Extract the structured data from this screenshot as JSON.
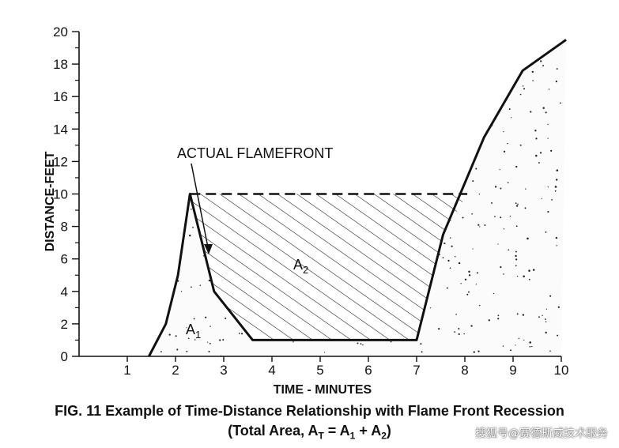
{
  "chart_data": {
    "type": "line",
    "xlabel": "TIME - MINUTES",
    "ylabel": "DISTANCE-FEET",
    "xlim": [
      0,
      10
    ],
    "ylim": [
      0,
      20
    ],
    "x_ticks": [
      1,
      2,
      3,
      4,
      5,
      6,
      7,
      8,
      9,
      10
    ],
    "y_ticks": [
      0,
      2,
      4,
      6,
      8,
      10,
      12,
      14,
      16,
      18,
      20
    ],
    "grid": false,
    "series": [
      {
        "name": "ACTUAL FLAMEFRONT",
        "style": "solid",
        "x": [
          1.45,
          1.8,
          2.05,
          2.3,
          2.8,
          3.6,
          7.0,
          7.55,
          8.4,
          9.2,
          10.1
        ],
        "y": [
          0,
          2,
          5,
          10,
          4,
          1,
          1,
          7.5,
          13.5,
          17.6,
          19.5
        ]
      },
      {
        "style": "dashed",
        "x": [
          2.3,
          8.05
        ],
        "y": [
          10,
          10
        ]
      }
    ],
    "regions": [
      {
        "label": "A",
        "label_sub": "1",
        "fill": "stippled"
      },
      {
        "label": "A",
        "label_sub": "2",
        "fill": "hatched"
      }
    ],
    "annotations": [
      {
        "text": "ACTUAL FLAMEFRONT",
        "points_to": [
          2.7,
          6.5
        ]
      }
    ]
  },
  "caption": {
    "line1": "FIG. 11  Example of Time-Distance Relationship with Flame Front Recession",
    "line2_prefix": "(Total Area, A",
    "line2_sub_T": "T",
    "line2_eq": " = A",
    "line2_sub_1": "1",
    "line2_plus": " + A",
    "line2_sub_2": "2",
    "line2_suffix": ")"
  },
  "watermark": "搜狐号@赛德斯威技术服务"
}
